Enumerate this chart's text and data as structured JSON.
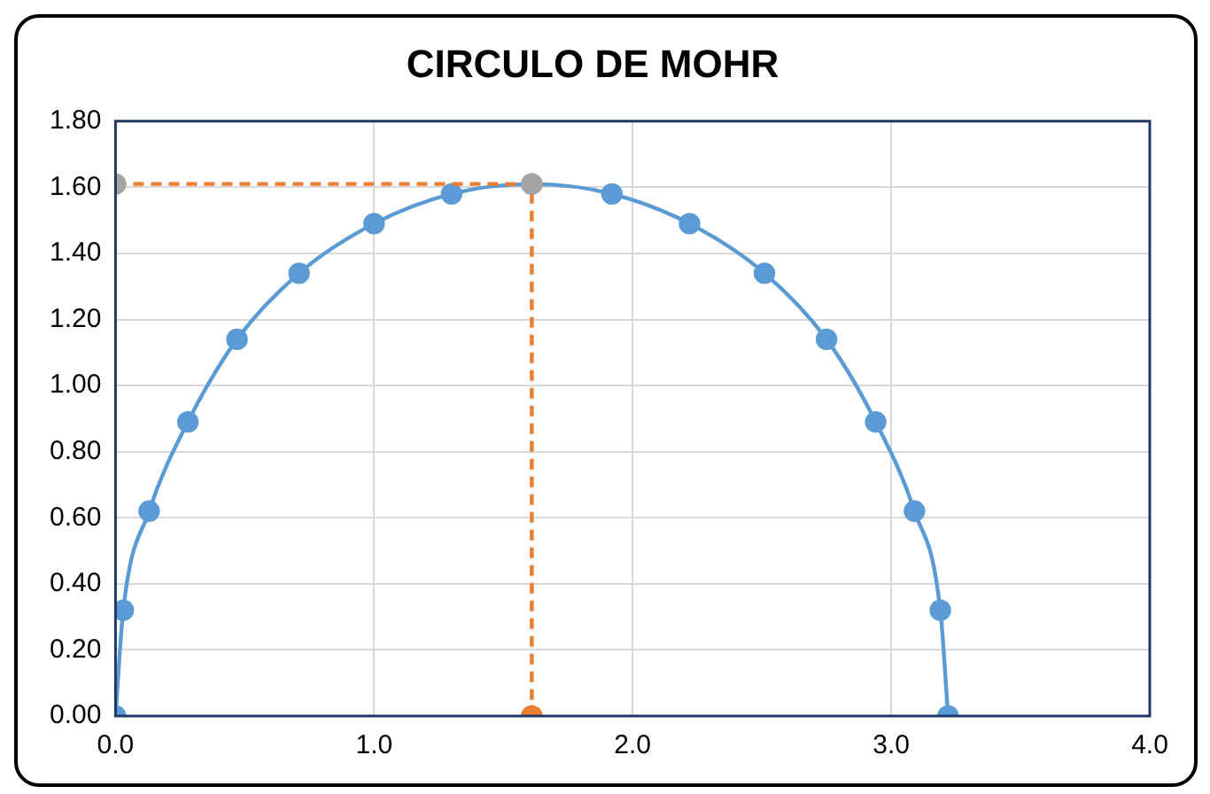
{
  "chart_data": {
    "type": "line",
    "title": "CIRCULO DE MOHR",
    "series": [
      {
        "color": "#5b9bd5",
        "line_style": "solid",
        "marker": "circle",
        "x": [
          0,
          0.03,
          0.13,
          0.28,
          0.47,
          0.71,
          1.0,
          1.3,
          1.61,
          1.92,
          2.22,
          2.51,
          2.75,
          2.94,
          3.09,
          3.19,
          3.22
        ],
        "values": [
          0,
          0.32,
          0.62,
          0.89,
          1.14,
          1.34,
          1.49,
          1.58,
          1.61,
          1.58,
          1.49,
          1.34,
          1.14,
          0.89,
          0.62,
          0.32,
          0
        ]
      },
      {
        "color": "#ed7d31",
        "line_style": "dashed",
        "marker": "circle",
        "colors": [
          "#a5a5a5",
          "#a5a5a5",
          "#ed7d31"
        ],
        "x": [
          0,
          1.61,
          1.61
        ],
        "values": [
          1.61,
          1.61,
          0
        ]
      }
    ],
    "xlim": [
      0,
      4
    ],
    "xticks": [
      {
        "value": 0,
        "label": "0.0"
      },
      {
        "value": 1,
        "label": "1.0"
      },
      {
        "value": 2,
        "label": "2.0"
      },
      {
        "value": 3,
        "label": "3.0"
      },
      {
        "value": 4,
        "label": "4.0"
      }
    ],
    "ylim": [
      0,
      1.8
    ],
    "yticks": [
      {
        "value": 0,
        "label": "0.00"
      },
      {
        "value": 0.2,
        "label": "0.20"
      },
      {
        "value": 0.4,
        "label": "0.40"
      },
      {
        "value": 0.6,
        "label": "0.60"
      },
      {
        "value": 0.8,
        "label": "0.80"
      },
      {
        "value": 1.0,
        "label": "1.00"
      },
      {
        "value": 1.2,
        "label": "1.20"
      },
      {
        "value": 1.4,
        "label": "1.40"
      },
      {
        "value": 1.6,
        "label": "1.60"
      },
      {
        "value": 1.8,
        "label": "1.80"
      }
    ],
    "grid": true,
    "legend": false
  }
}
